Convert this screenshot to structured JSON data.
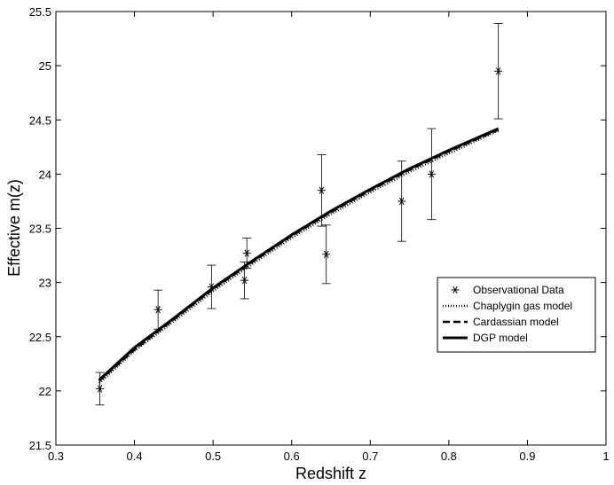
{
  "chart_data": {
    "type": "scatter",
    "title": "",
    "xlabel": "Redshift z",
    "ylabel": "Effective m(z)",
    "xlim": [
      0.3,
      1.0
    ],
    "ylim": [
      21.5,
      25.5
    ],
    "xticks": [
      "0.3",
      "0.4",
      "0.5",
      "0.6",
      "0.7",
      "0.8",
      "0.9",
      "1"
    ],
    "yticks": [
      "21.5",
      "22",
      "22.5",
      "23",
      "23.5",
      "24",
      "24.5",
      "25",
      "25.5"
    ],
    "grid": false,
    "legend_position": "right",
    "series": [
      {
        "name": "Observational Data",
        "kind": "points-with-errorbars",
        "marker": "asterisk",
        "points": [
          {
            "x": 0.356,
            "y": 22.02,
            "err": 0.15
          },
          {
            "x": 0.43,
            "y": 22.75,
            "err": 0.18
          },
          {
            "x": 0.498,
            "y": 22.96,
            "err": 0.2
          },
          {
            "x": 0.54,
            "y": 23.02,
            "err": 0.17
          },
          {
            "x": 0.543,
            "y": 23.27,
            "err": 0.14
          },
          {
            "x": 0.638,
            "y": 23.85,
            "err": 0.33
          },
          {
            "x": 0.644,
            "y": 23.26,
            "err": 0.27
          },
          {
            "x": 0.74,
            "y": 23.75,
            "err": 0.37
          },
          {
            "x": 0.778,
            "y": 24.0,
            "err": 0.42
          },
          {
            "x": 0.863,
            "y": 24.95,
            "err": 0.44
          }
        ]
      },
      {
        "name": "Chaplygin gas model",
        "kind": "line",
        "style": "dotted",
        "x": [
          0.355,
          0.4,
          0.45,
          0.5,
          0.55,
          0.6,
          0.65,
          0.7,
          0.75,
          0.8,
          0.863
        ],
        "y": [
          22.07,
          22.37,
          22.64,
          22.92,
          23.17,
          23.41,
          23.63,
          23.83,
          24.02,
          24.19,
          24.4
        ]
      },
      {
        "name": "Cardassian model",
        "kind": "line",
        "style": "dashed",
        "x": [
          0.355,
          0.4,
          0.45,
          0.5,
          0.55,
          0.6,
          0.65,
          0.7,
          0.75,
          0.8,
          0.863
        ],
        "y": [
          22.09,
          22.38,
          22.66,
          22.94,
          23.19,
          23.43,
          23.65,
          23.85,
          24.04,
          24.21,
          24.41
        ]
      },
      {
        "name": "DGP model",
        "kind": "line",
        "style": "solid",
        "x": [
          0.355,
          0.4,
          0.45,
          0.5,
          0.55,
          0.6,
          0.65,
          0.7,
          0.75,
          0.8,
          0.863
        ],
        "y": [
          22.1,
          22.4,
          22.67,
          22.95,
          23.2,
          23.44,
          23.66,
          23.86,
          24.05,
          24.22,
          24.42
        ]
      }
    ]
  }
}
